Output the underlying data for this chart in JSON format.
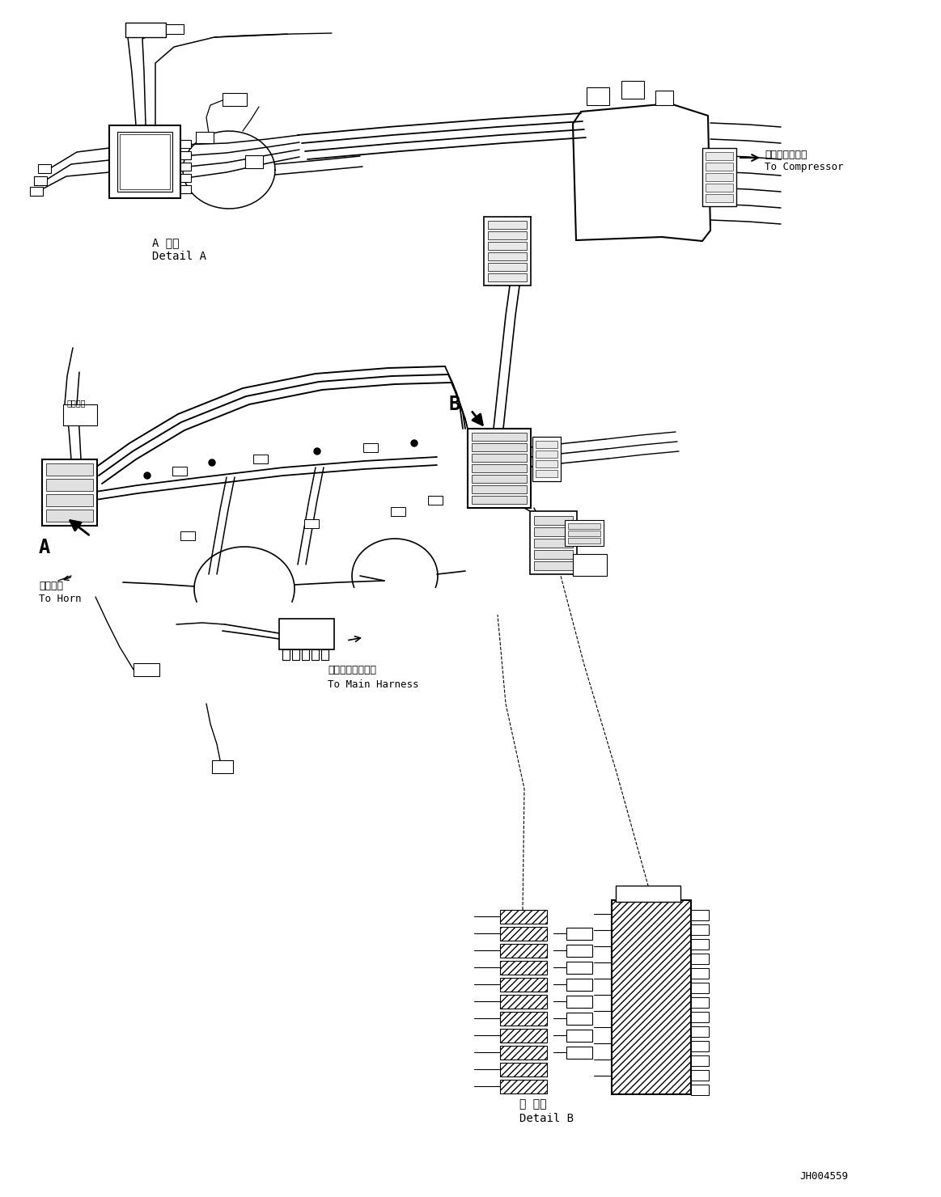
{
  "bg_color": "#ffffff",
  "line_color": "#000000",
  "fig_width": 11.63,
  "fig_height": 14.8,
  "dpi": 100,
  "part_id": "JH004559",
  "labels": {
    "detail_a_jp": "A 詳細",
    "detail_a_en": "Detail A",
    "detail_b_jp": "日 詳細",
    "detail_b_en": "Detail B",
    "compressor_jp": "コンプレッサへ",
    "compressor_en": "To Compressor",
    "horn_jp": "ホーンへ",
    "horn_en": "To Horn",
    "harness_jp": "メインハーネスへ",
    "harness_en": "To Main Harness",
    "label_a": "A",
    "label_b": "B"
  }
}
